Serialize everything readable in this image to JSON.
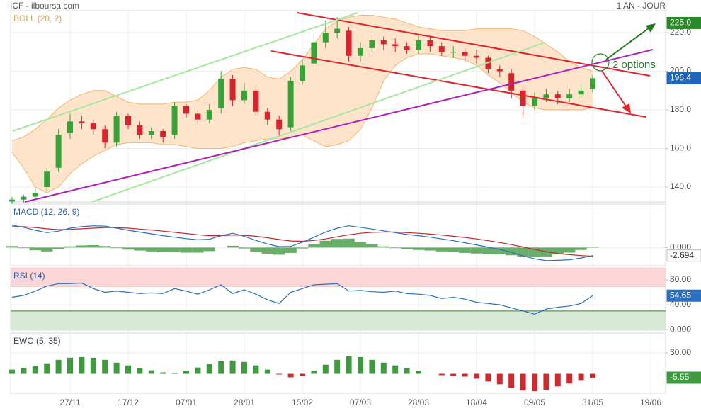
{
  "header": {
    "title": "ICF - ilboursa.com",
    "period": "1 AN - JOUR"
  },
  "chart_data": [
    {
      "type": "candlestick",
      "title": "BOLL (20, 2)",
      "categories": [
        null,
        null,
        null,
        null,
        null,
        "27/11",
        null,
        null,
        null,
        null,
        "17/12",
        null,
        null,
        null,
        null,
        "07/01",
        null,
        null,
        null,
        null,
        "28/01",
        null,
        null,
        null,
        null,
        "15/02",
        null,
        null,
        null,
        null,
        "07/03",
        null,
        null,
        null,
        null,
        "28/03",
        null,
        null,
        null,
        null,
        "18/04",
        null,
        null,
        null,
        null,
        "09/05",
        null,
        null,
        null,
        null,
        "31/05",
        null,
        null,
        null,
        null,
        "19/06"
      ],
      "open": [
        132.5,
        133.5,
        135,
        140,
        150,
        168,
        174,
        173,
        170,
        163,
        177,
        172,
        167,
        169,
        167,
        182,
        178,
        175,
        181,
        196,
        185,
        190,
        179,
        175,
        171,
        195,
        204,
        215,
        220,
        221,
        208,
        212,
        216,
        214,
        213,
        211,
        216,
        213,
        210,
        210,
        208,
        207,
        201,
        199,
        190,
        182,
        186,
        188,
        186,
        188,
        191,
        null,
        null,
        null,
        null,
        null
      ],
      "high": [
        135,
        136,
        139,
        150,
        170,
        178,
        177,
        175,
        172,
        179,
        178,
        174,
        171,
        170,
        184,
        183,
        180,
        183,
        200,
        198,
        194,
        192,
        181,
        177,
        197,
        206,
        220,
        226,
        228,
        223,
        215,
        219,
        218,
        217,
        215,
        219,
        218,
        215,
        213,
        212,
        211,
        208,
        203,
        201,
        192,
        189,
        191,
        190,
        191,
        193,
        198,
        null,
        null,
        null,
        null,
        null
      ],
      "low": [
        131,
        132,
        134,
        138,
        148,
        165,
        170,
        167,
        160,
        161,
        170,
        165,
        165,
        163,
        165,
        176,
        172,
        173,
        178,
        182,
        183,
        177,
        172,
        166,
        169,
        193,
        202,
        212,
        217,
        205,
        205,
        210,
        211,
        210,
        209,
        209,
        210,
        208,
        207,
        205,
        204,
        199,
        197,
        186,
        176,
        180,
        184,
        183,
        184,
        186,
        189,
        null,
        null,
        null,
        null,
        null
      ],
      "close": [
        133.5,
        135,
        137,
        148,
        167,
        174,
        173,
        170,
        163,
        177,
        172,
        167,
        169,
        166,
        182,
        178,
        175,
        180,
        196,
        185,
        190,
        179,
        175,
        170,
        195,
        203,
        215,
        220,
        222,
        208,
        212,
        216,
        214,
        213,
        211,
        216,
        213,
        210,
        210,
        208,
        207,
        201,
        200,
        190,
        182,
        186,
        188,
        186,
        188,
        190,
        196.4,
        null,
        null,
        null,
        null,
        null
      ],
      "band_upper": [
        164,
        166,
        170,
        175,
        181,
        185,
        188,
        190,
        190,
        187,
        184,
        183,
        183,
        183,
        184,
        184,
        185,
        190,
        197,
        201,
        202,
        201,
        197,
        196,
        200,
        206,
        214,
        222,
        226,
        228,
        229,
        229,
        228,
        227,
        225,
        223,
        222,
        221,
        221,
        221,
        222,
        222,
        222,
        222,
        221,
        218,
        214,
        210,
        205,
        202,
        200,
        null,
        null,
        null,
        null,
        null
      ],
      "band_lower": [
        158,
        150,
        140,
        137,
        140,
        147,
        152,
        156,
        159,
        162,
        163,
        163,
        163,
        162,
        162,
        161,
        160,
        160,
        160,
        161,
        163,
        164,
        165,
        165,
        166,
        167,
        164,
        161,
        162,
        164,
        170,
        181,
        195,
        203,
        207,
        209,
        209,
        208,
        207,
        206,
        203,
        198,
        194,
        189,
        184,
        181,
        180,
        180,
        180,
        180,
        181,
        null,
        null,
        null,
        null,
        null
      ],
      "up_color": "#36a336",
      "down_color": "#d9232d",
      "band_color": "#f5b56e",
      "band_fill": "#fde4cb",
      "last_color": "#1f66b8",
      "ylim": [
        132.3,
        231.4
      ],
      "yticks": [
        {
          "value": 140,
          "label": "140.0"
        },
        {
          "value": 160,
          "label": "160.0"
        },
        {
          "value": 180,
          "label": "180.0"
        },
        {
          "value": 200,
          "label": "200.0"
        },
        {
          "value": 220,
          "label": "220.0"
        }
      ],
      "target": {
        "value": 225,
        "label": "225.0",
        "color": "#2b8a2b"
      },
      "annotation": "2 options"
    },
    {
      "type": "macd",
      "title": "MACD (12, 26, 9)",
      "macd": [
        7.5,
        6.8,
        5.8,
        5.0,
        5.5,
        6.5,
        7.0,
        7.3,
        7.2,
        6.5,
        5.8,
        5.2,
        4.6,
        4.0,
        3.5,
        3.0,
        2.6,
        2.8,
        4.0,
        4.8,
        3.8,
        2.4,
        1.2,
        0.3,
        0.4,
        1.8,
        3.5,
        5.2,
        6.5,
        7.3,
        6.8,
        6.2,
        5.6,
        5.0,
        4.4,
        4.0,
        3.5,
        2.9,
        2.3,
        1.6,
        0.9,
        0.1,
        -0.6,
        -1.6,
        -2.8,
        -3.8,
        -4.4,
        -4.3,
        -4.1,
        -3.5,
        -2.694,
        null,
        null,
        null,
        null,
        null
      ],
      "signal": [
        7.0,
        7.0,
        6.7,
        6.3,
        6.0,
        6.1,
        6.3,
        6.5,
        6.7,
        6.7,
        6.5,
        6.2,
        5.9,
        5.5,
        5.1,
        4.7,
        4.3,
        4.0,
        4.0,
        4.2,
        4.1,
        3.8,
        3.3,
        2.7,
        2.2,
        2.1,
        2.4,
        2.9,
        3.6,
        4.3,
        4.8,
        5.1,
        5.2,
        5.2,
        5.0,
        4.8,
        4.5,
        4.2,
        3.8,
        3.4,
        2.9,
        2.3,
        1.7,
        1.0,
        0.2,
        -0.6,
        -1.4,
        -2.0,
        -2.4,
        -2.7,
        -2.9,
        null,
        null,
        null,
        null,
        null
      ],
      "histogram": [
        0.5,
        -0.2,
        -0.9,
        -1.3,
        -0.5,
        0.4,
        0.7,
        0.8,
        0.5,
        -0.2,
        -0.7,
        -1.0,
        -1.3,
        -1.5,
        -1.6,
        -1.7,
        -1.7,
        -1.2,
        0,
        0.6,
        -0.3,
        -1.4,
        -2.1,
        -2.4,
        -1.8,
        -0.3,
        1.1,
        2.3,
        2.9,
        3.0,
        2.0,
        1.1,
        0.4,
        -0.2,
        -0.6,
        -0.8,
        -1.0,
        -1.3,
        -1.5,
        -1.8,
        -2.0,
        -2.2,
        -2.3,
        -2.6,
        -3.0,
        -3.2,
        -3.0,
        -2.3,
        -1.7,
        -0.8,
        0.2,
        null,
        null,
        null,
        null,
        null
      ],
      "macd_color": "#2a6fc0",
      "signal_color": "#c0282d",
      "histogram_color": "#68ad68",
      "ylim": [
        -6.1,
        14.6
      ],
      "yticks": [
        {
          "value": 0,
          "label": "0.000"
        }
      ]
    },
    {
      "type": "rsi",
      "title": "RSI (14)",
      "values": [
        52,
        55,
        62,
        70,
        74,
        74,
        75,
        66,
        60,
        62,
        60,
        58,
        59,
        58,
        66,
        62,
        57,
        64,
        72,
        58,
        64,
        57,
        48,
        42,
        60,
        66,
        72,
        73,
        74,
        62,
        63,
        61,
        60,
        62,
        58,
        57,
        55,
        50,
        52,
        49,
        44,
        42,
        40,
        35,
        30,
        25,
        33,
        36,
        38,
        42,
        54.65,
        null,
        null,
        null,
        null,
        null
      ],
      "color": "#2a6fc0",
      "overbought": 70,
      "oversold": 30,
      "overbought_color": "#fbd6d6",
      "oversold_color": "#d6ead6",
      "ylim": [
        -1,
        99.4
      ],
      "yticks": [
        {
          "value": 80,
          "label": "80.00"
        },
        {
          "value": 40,
          "label": "40.00"
        },
        {
          "value": 0,
          "label": "0.000"
        }
      ]
    },
    {
      "type": "ewo",
      "title": "EWO (5, 35)",
      "values": [
        6,
        8,
        11,
        15,
        20,
        23,
        24,
        23,
        20,
        16,
        12,
        8,
        5,
        2,
        1,
        4,
        9,
        14,
        18,
        19,
        17,
        12,
        6,
        -1,
        -5,
        -3,
        4,
        13,
        20,
        25,
        24,
        20,
        16,
        12,
        8,
        4,
        0,
        -2,
        -3,
        -4,
        -7,
        -11,
        -15,
        -20,
        -24,
        -25,
        -23,
        -18,
        -14,
        -9,
        -5.55,
        null,
        null,
        null,
        null,
        null
      ],
      "up_color": "#3f9a3f",
      "down_color": "#d0282d",
      "ylim": [
        -27.9,
        58.4
      ],
      "yticks": [
        {
          "value": 30,
          "label": "30.00"
        }
      ]
    }
  ]
}
